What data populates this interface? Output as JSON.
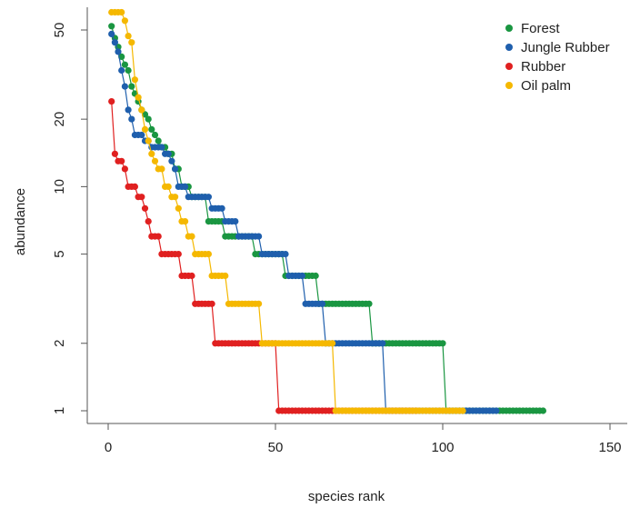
{
  "chart_data": {
    "type": "line",
    "title": "",
    "xlabel": "species rank",
    "ylabel": "abundance",
    "xlim": [
      0,
      150
    ],
    "ylim": [
      1,
      57
    ],
    "yscale": "log",
    "xticks": [
      0,
      50,
      100,
      150
    ],
    "yticks": [
      1,
      2,
      5,
      10,
      20,
      50
    ],
    "grid": false,
    "legend": "top-right",
    "series": [
      {
        "name": "Forest",
        "color": "#1a9641",
        "runs": [
          [
            1,
            1,
            52
          ],
          [
            2,
            2,
            46
          ],
          [
            3,
            3,
            42
          ],
          [
            4,
            4,
            38
          ],
          [
            5,
            5,
            35
          ],
          [
            6,
            6,
            33
          ],
          [
            7,
            7,
            28
          ],
          [
            8,
            8,
            26
          ],
          [
            9,
            9,
            24
          ],
          [
            10,
            10,
            22
          ],
          [
            11,
            11,
            21
          ],
          [
            12,
            12,
            20
          ],
          [
            13,
            13,
            18
          ],
          [
            14,
            14,
            17
          ],
          [
            15,
            15,
            16
          ],
          [
            16,
            17,
            15
          ],
          [
            18,
            19,
            14
          ],
          [
            20,
            21,
            12
          ],
          [
            22,
            24,
            10
          ],
          [
            25,
            29,
            9
          ],
          [
            30,
            34,
            7
          ],
          [
            35,
            43,
            6
          ],
          [
            44,
            52,
            5
          ],
          [
            53,
            62,
            4
          ],
          [
            63,
            78,
            3
          ],
          [
            79,
            100,
            2
          ],
          [
            101,
            130,
            1
          ]
        ]
      },
      {
        "name": "Jungle Rubber",
        "color": "#1f5fad",
        "runs": [
          [
            1,
            1,
            48
          ],
          [
            2,
            2,
            44
          ],
          [
            3,
            3,
            40
          ],
          [
            4,
            4,
            33
          ],
          [
            5,
            5,
            28
          ],
          [
            6,
            6,
            22
          ],
          [
            7,
            7,
            20
          ],
          [
            8,
            10,
            17
          ],
          [
            11,
            12,
            16
          ],
          [
            13,
            16,
            15
          ],
          [
            17,
            18,
            14
          ],
          [
            19,
            19,
            13
          ],
          [
            20,
            20,
            12
          ],
          [
            21,
            23,
            10
          ],
          [
            24,
            30,
            9
          ],
          [
            31,
            34,
            8
          ],
          [
            35,
            38,
            7
          ],
          [
            39,
            45,
            6
          ],
          [
            46,
            53,
            5
          ],
          [
            54,
            58,
            4
          ],
          [
            59,
            64,
            3
          ],
          [
            65,
            82,
            2
          ],
          [
            83,
            116,
            1
          ]
        ]
      },
      {
        "name": "Rubber",
        "color": "#e02020",
        "runs": [
          [
            1,
            1,
            24
          ],
          [
            2,
            2,
            14
          ],
          [
            3,
            4,
            13
          ],
          [
            5,
            5,
            12
          ],
          [
            6,
            8,
            10
          ],
          [
            9,
            10,
            9
          ],
          [
            11,
            11,
            8
          ],
          [
            12,
            12,
            7
          ],
          [
            13,
            15,
            6
          ],
          [
            16,
            17,
            5
          ],
          [
            18,
            21,
            5
          ],
          [
            22,
            25,
            4
          ],
          [
            26,
            31,
            3
          ],
          [
            32,
            50,
            2
          ],
          [
            51,
            92,
            1
          ]
        ]
      },
      {
        "name": "Oil palm",
        "color": "#f5b800",
        "runs": [
          [
            1,
            4,
            60
          ],
          [
            5,
            5,
            55
          ],
          [
            6,
            6,
            47
          ],
          [
            7,
            7,
            44
          ],
          [
            8,
            8,
            30
          ],
          [
            9,
            9,
            25
          ],
          [
            10,
            10,
            22
          ],
          [
            11,
            11,
            18
          ],
          [
            12,
            12,
            16
          ],
          [
            13,
            13,
            14
          ],
          [
            14,
            14,
            13
          ],
          [
            15,
            16,
            12
          ],
          [
            17,
            18,
            10
          ],
          [
            19,
            20,
            9
          ],
          [
            21,
            21,
            8
          ],
          [
            22,
            23,
            7
          ],
          [
            24,
            25,
            6
          ],
          [
            26,
            30,
            5
          ],
          [
            31,
            35,
            4
          ],
          [
            36,
            45,
            3
          ],
          [
            46,
            67,
            2
          ],
          [
            68,
            106,
            1
          ]
        ]
      }
    ]
  }
}
